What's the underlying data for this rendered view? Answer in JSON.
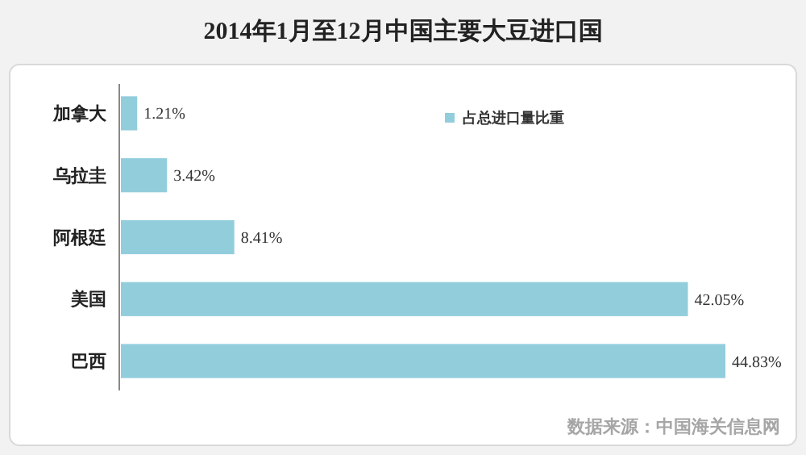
{
  "chart_data": {
    "type": "bar",
    "orientation": "horizontal",
    "title": "2014年1月至12月中国主要大豆进口国",
    "categories": [
      "加拿大",
      "乌拉圭",
      "阿根廷",
      "美国",
      "巴西"
    ],
    "series": [
      {
        "name": "占总进口量比重",
        "color": "#92cddc",
        "values": [
          1.21,
          3.42,
          8.41,
          42.05,
          44.83
        ],
        "value_labels": [
          "1.21%",
          "3.42%",
          "8.41%",
          "42.05%",
          "44.83%"
        ]
      }
    ],
    "legend": "top right",
    "annotations": [
      "数据来源：中国海关信息网"
    ]
  }
}
